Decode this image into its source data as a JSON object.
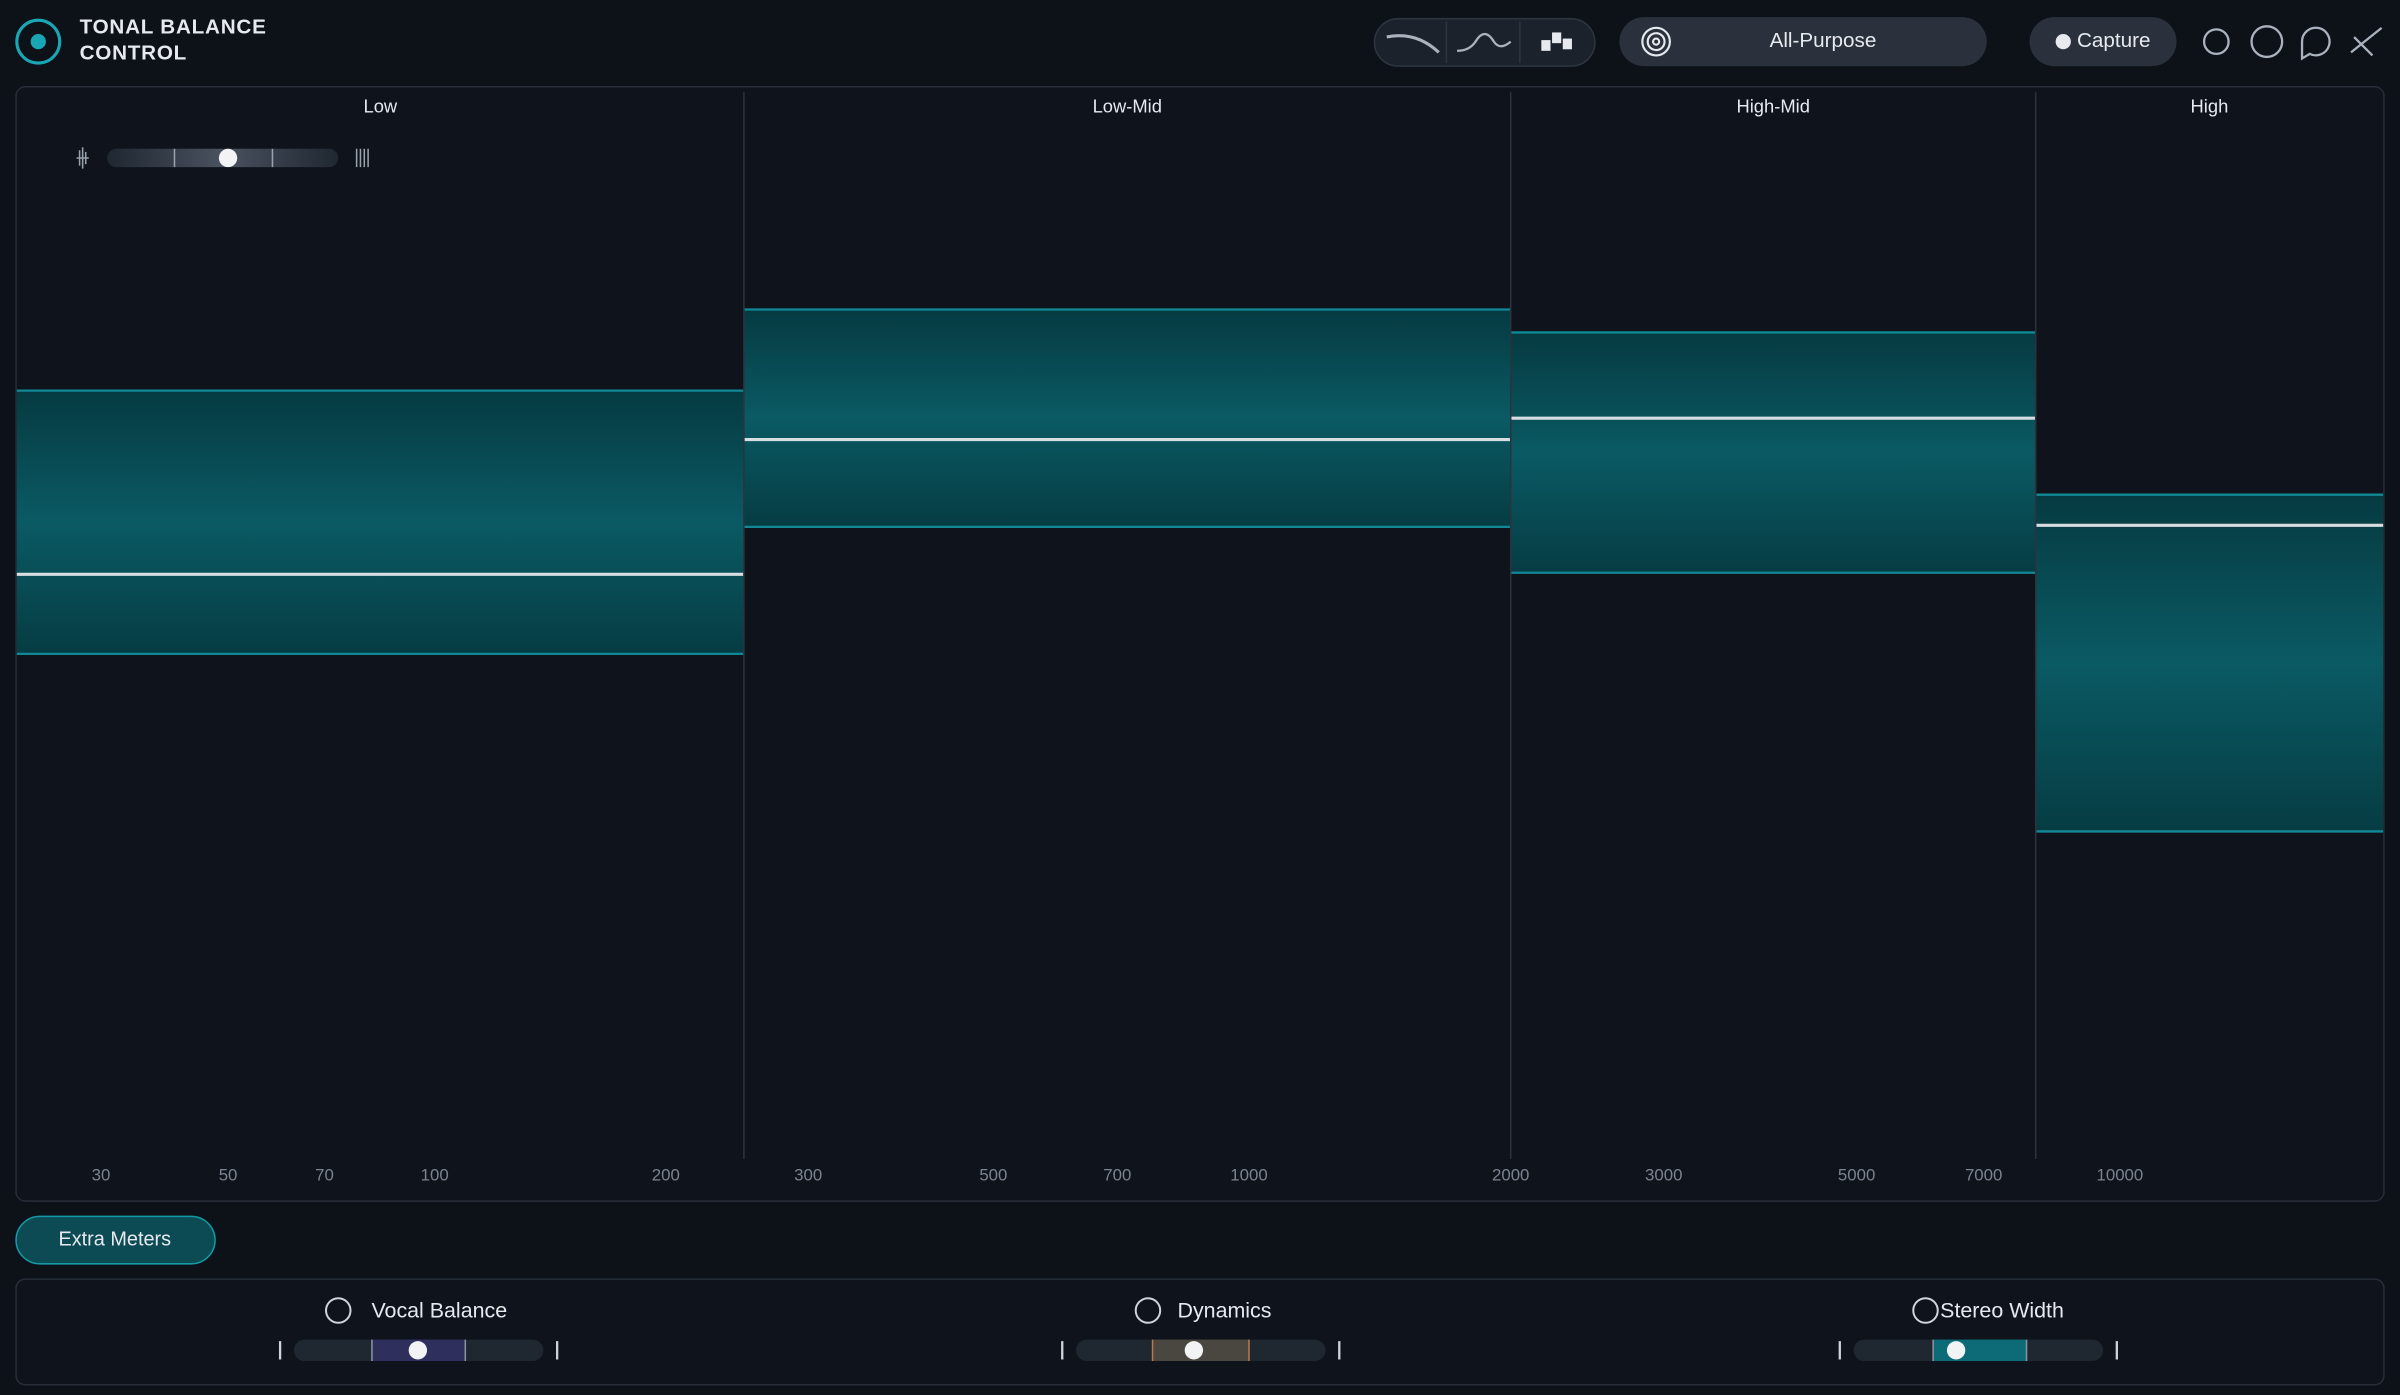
{
  "header": {
    "title_line1": "TONAL BALANCE",
    "title_line2": "CONTROL",
    "target": "All-Purpose",
    "capture": "Capture"
  },
  "bands": [
    {
      "label": "Low"
    },
    {
      "label": "Low-Mid"
    },
    {
      "label": "High-Mid"
    },
    {
      "label": "High"
    }
  ],
  "frequency_labels": [
    "30",
    "50",
    "70",
    "100",
    "200",
    "300",
    "500",
    "700",
    "1000",
    "2000",
    "3000",
    "5000",
    "7000",
    "10000"
  ],
  "extra_meters": "Extra Meters",
  "meters": [
    {
      "label": "Vocal Balance"
    },
    {
      "label": "Dynamics"
    },
    {
      "label": "Stereo Width"
    }
  ]
}
